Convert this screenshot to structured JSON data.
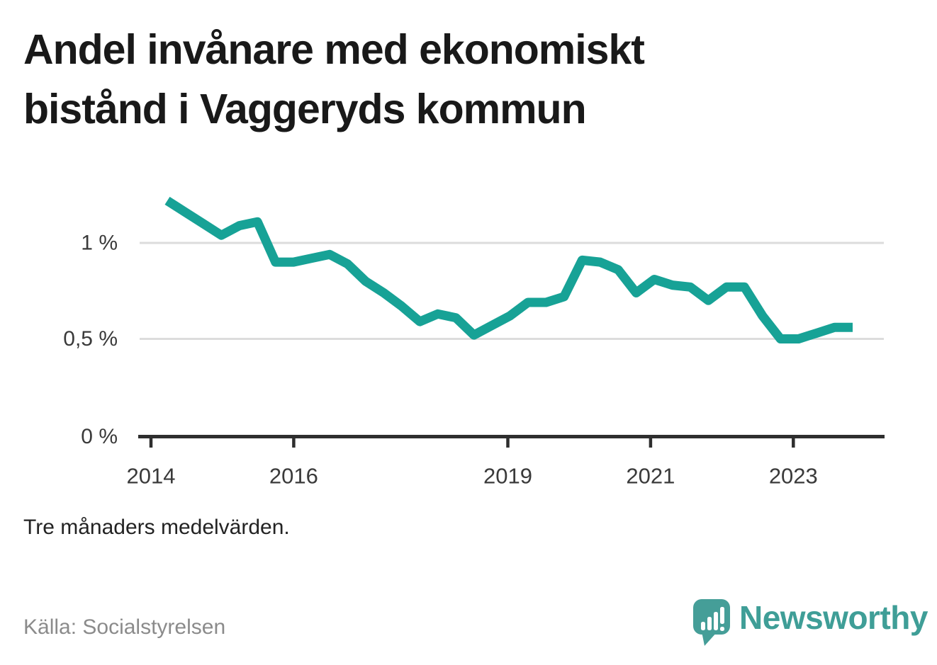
{
  "title": {
    "line1": "Andel invånare med ekonomiskt",
    "line2": "bistånd i Vaggeryds kommun"
  },
  "note": "Tre månaders medelvärden.",
  "source": "Källa: Socialstyrelsen",
  "branding": {
    "name": "Newsworthy"
  },
  "colors": {
    "line": "#17a296",
    "grid": "#dcdcdc",
    "axis": "#2e2e2e",
    "tick_label": "#3a3a3a",
    "title_text": "#191919",
    "note_text": "#232323",
    "source_text": "#8b8b8b",
    "brand_teal": "#459e98"
  },
  "chart_data": {
    "type": "line",
    "title": "Andel invånare med ekonomiskt bistånd i Vaggeryds kommun",
    "subtitle": "Tre månaders medelvärden.",
    "unit": "%",
    "grid": true,
    "legend": "none",
    "ylim": [
      0,
      1.3
    ],
    "y_ticks": [
      {
        "label": "0 %",
        "value": 0
      },
      {
        "label": "0,5 %",
        "value": 0.5
      },
      {
        "label": "1 %",
        "value": 1
      }
    ],
    "x_ticks": [
      {
        "label": "2014",
        "year": 2014
      },
      {
        "label": "2016",
        "year": 2016
      },
      {
        "label": "2019",
        "year": 2019
      },
      {
        "label": "2021",
        "year": 2021
      },
      {
        "label": "2023",
        "year": 2023
      }
    ],
    "series": [
      {
        "name": "Andel invånare med ekonomiskt bistånd",
        "x": [
          "2014-Q1",
          "2014-Q2",
          "2014-Q3",
          "2014-Q4",
          "2015-Q1",
          "2015-Q2",
          "2015-Q3",
          "2015-Q4",
          "2016-Q1",
          "2016-Q2",
          "2016-Q3",
          "2016-Q4",
          "2017-Q1",
          "2017-Q2",
          "2017-Q3",
          "2017-Q4",
          "2018-Q1",
          "2018-Q2",
          "2018-Q3",
          "2018-Q4",
          "2019-Q1",
          "2019-Q2",
          "2019-Q3",
          "2019-Q4",
          "2020-Q1",
          "2020-Q2",
          "2020-Q3",
          "2020-Q4",
          "2021-Q1",
          "2021-Q2",
          "2021-Q3",
          "2021-Q4",
          "2022-Q1",
          "2022-Q2",
          "2022-Q3",
          "2022-Q4",
          "2023-Q1",
          "2023-Q2",
          "2023-Q3"
        ],
        "values": [
          1.22,
          1.16,
          1.1,
          1.04,
          1.09,
          1.11,
          0.9,
          0.9,
          0.92,
          0.94,
          0.89,
          0.8,
          0.74,
          0.67,
          0.59,
          0.63,
          0.61,
          0.52,
          0.57,
          0.62,
          0.69,
          0.69,
          0.72,
          0.91,
          0.9,
          0.86,
          0.74,
          0.81,
          0.78,
          0.77,
          0.7,
          0.77,
          0.77,
          0.62,
          0.5,
          0.5,
          0.53,
          0.56,
          0.56
        ]
      }
    ]
  }
}
